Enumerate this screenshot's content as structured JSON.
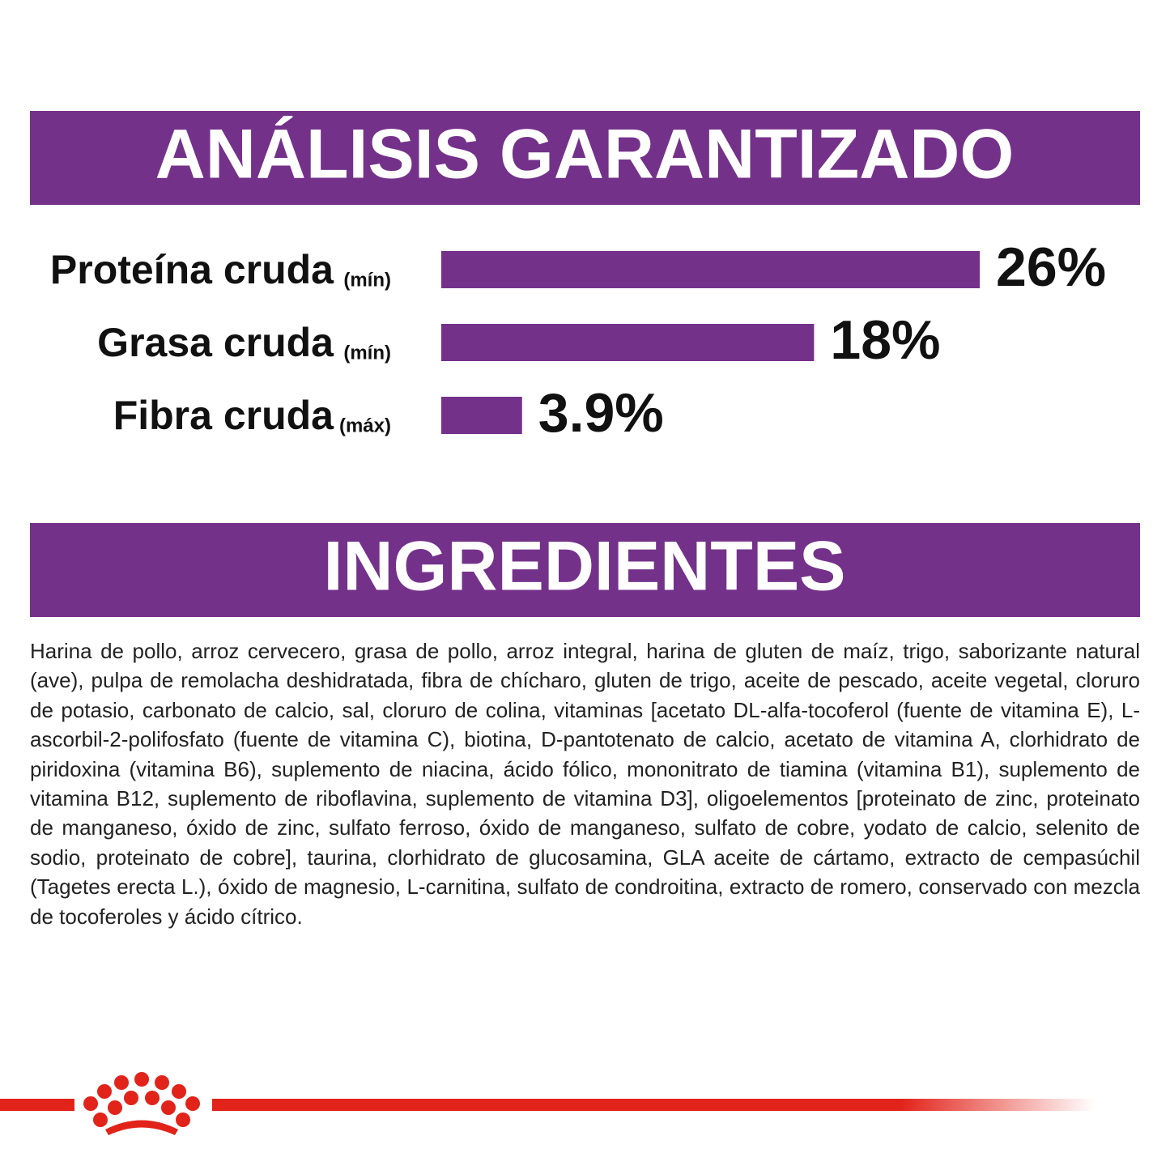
{
  "chart_data": {
    "type": "bar",
    "orientation": "horizontal",
    "title": "ANÁLISIS GARANTIZADO",
    "categories": [
      "Proteína cruda",
      "Grasa cruda",
      "Fibra cruda"
    ],
    "qualifiers": [
      "(mín)",
      "(mín)",
      "(máx)"
    ],
    "values": [
      26,
      18,
      3.9
    ],
    "value_labels": [
      "26%",
      "18%",
      "3.9%"
    ],
    "color": "#74318a"
  },
  "ingredients": {
    "title": "INGREDIENTES",
    "text": "Harina de pollo, arroz cervecero, grasa de pollo, arroz integral, harina de gluten de maíz, trigo, saborizante natural (ave), pulpa de remolacha deshidratada, fibra de chícharo, gluten de trigo, aceite de pescado, aceite vegetal, cloruro de potasio, carbonato de calcio, sal, cloruro de colina, vitaminas [acetato DL-alfa-tocoferol (fuente de vitamina E), L-ascorbil-2-polifosfato (fuente de vitamina C), biotina, D-pantotenato de calcio, acetato de vitamina A, clorhidrato de piridoxina (vitamina B6), suplemento de niacina, ácido fólico, mononitrato de tiamina (vitamina B1), suplemento de vitamina B12, suplemento de riboflavina, suplemento de vitamina D3], oligoelementos [proteinato de zinc, proteinato de manganeso, óxido de zinc, sulfato ferroso, óxido de manganeso, sulfato de cobre, yodato de calcio, selenito de sodio, proteinato de cobre], taurina, clorhidrato de glucosamina, GLA aceite de cártamo, extracto de cempasúchil (Tagetes erecta L.), óxido de magnesio, L-carnitina, sulfato de condroitina, extracto de romero, conservado con mezcla de tocoferoles y ácido cítrico."
  }
}
